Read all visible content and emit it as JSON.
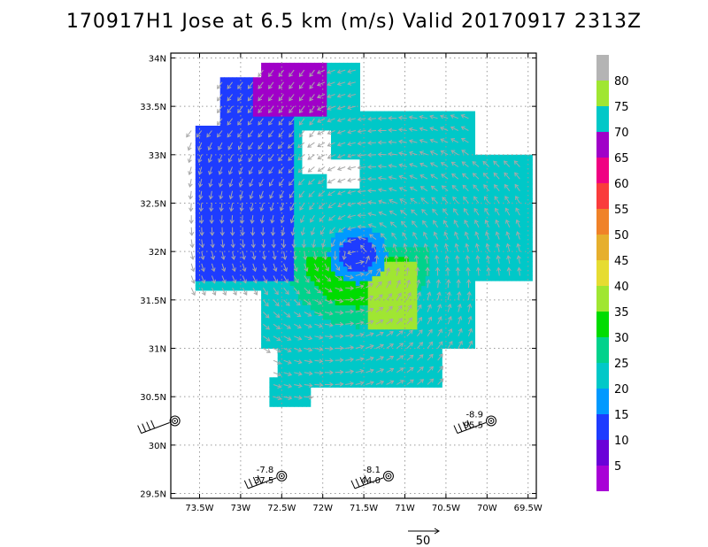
{
  "title": "170917H1 Jose at 6.5 km (m/s) Valid 20170917 2313Z",
  "chart_data": {
    "type": "heatmap",
    "title": "170917H1 Jose at 6.5 km (m/s) Valid 20170917 2313Z",
    "x_ticks": [
      "73.5W",
      "73W",
      "72.5W",
      "72W",
      "71.5W",
      "71W",
      "70.5W",
      "70W",
      "69.5W"
    ],
    "y_ticks": [
      "34N",
      "33.5N",
      "33N",
      "32.5N",
      "32N",
      "31.5N",
      "31N",
      "30.5N",
      "30N",
      "29.5N"
    ],
    "xlim": [
      -73.85,
      -69.4
    ],
    "ylim": [
      29.45,
      34.05
    ],
    "grid": true,
    "center": {
      "lon": -71.6,
      "lat": 31.95
    },
    "colorbar": {
      "labels": [
        "5",
        "10",
        "15",
        "20",
        "25",
        "30",
        "35",
        "40",
        "45",
        "50",
        "55",
        "60",
        "65",
        "70",
        "75",
        "80"
      ],
      "colors": [
        "#a800d6",
        "#6a00d8",
        "#1e3cff",
        "#0099ff",
        "#00c8c8",
        "#00d28c",
        "#00dc00",
        "#a0e632",
        "#e6dc32",
        "#e6af2d",
        "#f08228",
        "#fa3c3c",
        "#f00082",
        "#a000c8",
        "#00c8c8",
        "#a0e632",
        "#b4b4b4"
      ]
    },
    "observations": [
      {
        "lon": -73.8,
        "lat": 30.25,
        "top": "",
        "bottom": ""
      },
      {
        "lon": -72.5,
        "lat": 29.68,
        "top": "-7.8",
        "bottom": "37.5"
      },
      {
        "lon": -71.2,
        "lat": 29.68,
        "top": "-8.1",
        "bottom": "44.0"
      },
      {
        "lon": -69.95,
        "lat": 30.25,
        "top": "-8.9",
        "bottom": "95.5"
      }
    ],
    "reference_vector_label": "50"
  }
}
